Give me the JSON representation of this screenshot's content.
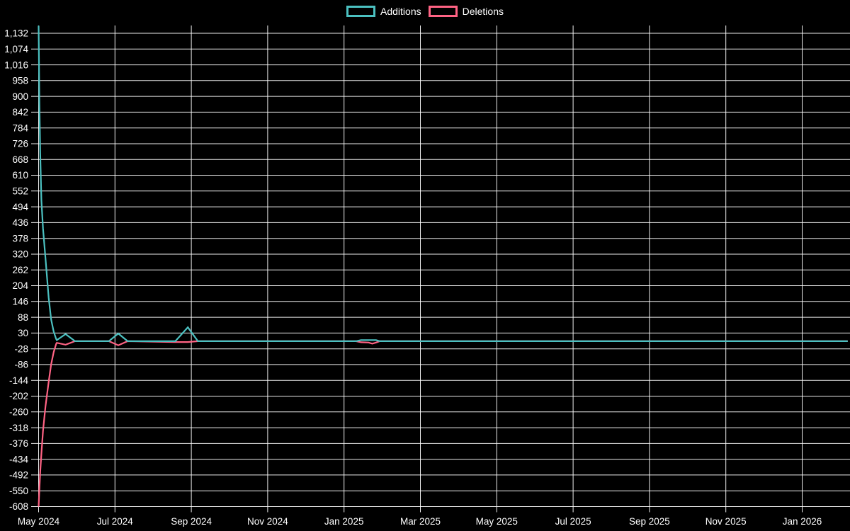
{
  "chart_data": {
    "type": "line",
    "title": "",
    "legend_position": "top-center",
    "background_color": "#000000",
    "text_color": "#ffffff",
    "grid_color": "#ffffff",
    "grid": true,
    "x_ticks": [
      "May 2024",
      "Jul 2024",
      "Sep 2024",
      "Nov 2024",
      "Jan 2025",
      "Mar 2025",
      "May 2025",
      "Jul 2025",
      "Sep 2025",
      "Nov 2025",
      "Jan 2026"
    ],
    "y_ticks": [
      "1,132",
      "1,074",
      "1,016",
      "958",
      "900",
      "842",
      "784",
      "726",
      "668",
      "610",
      "552",
      "494",
      "436",
      "378",
      "320",
      "262",
      "204",
      "146",
      "88",
      "30",
      "-28",
      "-86",
      "-144",
      "-202",
      "-260",
      "-318",
      "-376",
      "-434",
      "-492",
      "-550",
      "-608"
    ],
    "y_step": 58,
    "y_range": [
      -608,
      1161
    ],
    "x_encoding": "days since first plotted week (approx 2024-05-01), axis labeled every 2 months",
    "series": [
      {
        "name": "Additions",
        "color": "#4bc0c0",
        "points": [
          [
            0,
            1160
          ],
          [
            0.6,
            880
          ],
          [
            1.3,
            690
          ],
          [
            2.2,
            520
          ],
          [
            3.5,
            415
          ],
          [
            5.5,
            305
          ],
          [
            8,
            160
          ],
          [
            10,
            80
          ],
          [
            12,
            35
          ],
          [
            14,
            8
          ],
          [
            14.5,
            4
          ],
          [
            21.5,
            26
          ],
          [
            29,
            0
          ],
          [
            56,
            0
          ],
          [
            63.5,
            28
          ],
          [
            71,
            0
          ],
          [
            109,
            0
          ],
          [
            119,
            51
          ],
          [
            127,
            0
          ],
          [
            253,
            0
          ],
          [
            257,
            4
          ],
          [
            263,
            4
          ],
          [
            266,
            4
          ],
          [
            269,
            4
          ],
          [
            272,
            0
          ],
          [
            645,
            0
          ]
        ]
      },
      {
        "name": "Deletions",
        "color": "#ff6384",
        "points": [
          [
            0,
            -608
          ],
          [
            0.6,
            -545
          ],
          [
            1.3,
            -480
          ],
          [
            2.2,
            -415
          ],
          [
            3.5,
            -330
          ],
          [
            5.5,
            -240
          ],
          [
            8,
            -150
          ],
          [
            10,
            -85
          ],
          [
            12,
            -40
          ],
          [
            14,
            -10
          ],
          [
            14.5,
            -6
          ],
          [
            21.5,
            -13
          ],
          [
            29,
            0
          ],
          [
            56,
            0
          ],
          [
            63.5,
            -15
          ],
          [
            71,
            0
          ],
          [
            109,
            -3
          ],
          [
            119,
            -3
          ],
          [
            127,
            0
          ],
          [
            253,
            0
          ],
          [
            257,
            -4
          ],
          [
            263,
            -5
          ],
          [
            266,
            -9
          ],
          [
            269,
            -5
          ],
          [
            272,
            0
          ],
          [
            645,
            0
          ]
        ]
      }
    ]
  }
}
